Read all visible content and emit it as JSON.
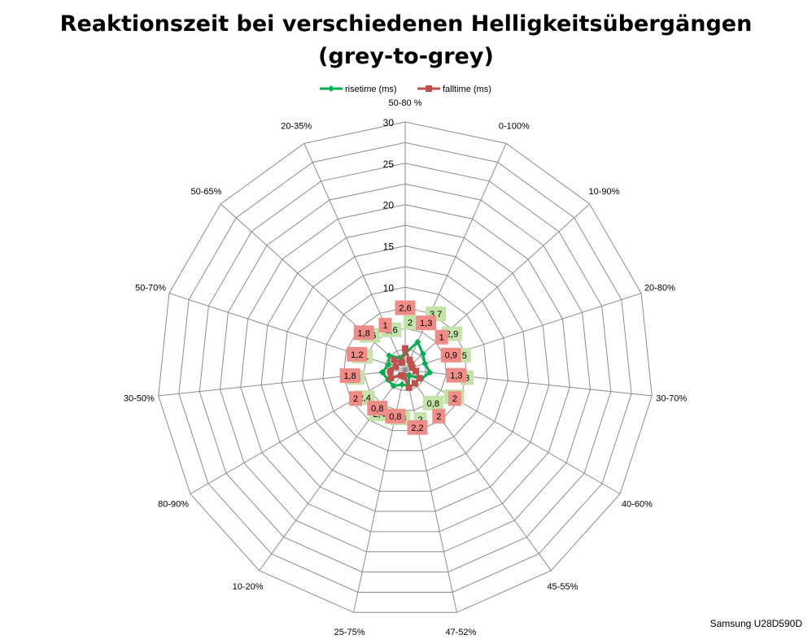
{
  "chart_data": {
    "type": "radar",
    "title_line1": "Reaktionszeit bei verschiedenen Helligkeitsübergängen",
    "title_line2": "(grey-to-grey)",
    "categories": [
      "50-80 %",
      "0-100%",
      "10-90%",
      "20-80%",
      "30-70%",
      "40-60%",
      "45-55%",
      "47-52%",
      "25-75%",
      "10-20%",
      "80-90%",
      "30-50%",
      "50-70%",
      "50-65%",
      "20-35%"
    ],
    "rlim": [
      0,
      30
    ],
    "r_ticks": [
      "0",
      "5",
      "10",
      "15",
      "20",
      "25",
      "30"
    ],
    "grid": true,
    "legend_position": "top",
    "series": [
      {
        "name": "risetime (ms)",
        "color": "#00B050",
        "label_bg": "#C4E3A8",
        "values": [
          2,
          3.7,
          2.9,
          2.5,
          3,
          2.2,
          0.8,
          2,
          1.8,
          2.4,
          2.4,
          2.8,
          2.1,
          2.6,
          1.6
        ],
        "labels": [
          "2",
          "3,7",
          "2,9",
          "2,5",
          "3",
          "2,2",
          "0,8",
          "2",
          "1,8",
          "2,4",
          "2,4",
          "2,8",
          "2,1",
          "2,6",
          "1,6"
        ]
      },
      {
        "name": "falltime (ms)",
        "color": "#C0504D",
        "label_bg": "#F08C88",
        "values": [
          2.6,
          1.3,
          1,
          0.9,
          1.3,
          2,
          2,
          2.2,
          0.8,
          0.8,
          2,
          1.8,
          1.2,
          1.8,
          1
        ],
        "labels": [
          "2,6",
          "1,3",
          "1",
          "0,9",
          "1,3",
          "2",
          "2",
          "2,2",
          "0,8",
          "0,8",
          "2",
          "1,8",
          "1,2",
          "1,8",
          "1"
        ]
      }
    ]
  },
  "footer": "Samsung U28D590D"
}
